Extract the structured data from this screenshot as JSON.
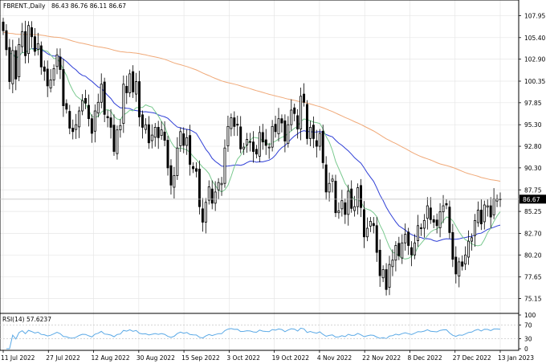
{
  "header": {
    "symbol": "FBRENT.,Daily",
    "ohlc": "86.43 86.76 86.11 86.67"
  },
  "rsi_header": {
    "label": "RSI(14) 57.6237"
  },
  "colors": {
    "background": "#ffffff",
    "grid": "#e6e6e6",
    "candle": "#000000",
    "ma_fast": "#7ac98f",
    "ma_mid": "#2f3fd6",
    "ma_slow": "#f0a978",
    "rsi_line": "#5aa9e6",
    "price_tag_bg": "#000000",
    "price_tag_text": "#ffffff"
  },
  "chart_data": {
    "type": "candlestick",
    "instrument": "FBRENT.",
    "timeframe": "Daily",
    "current_price": "86.67",
    "price_axis": {
      "ticks": [
        "107.95",
        "105.40",
        "102.90",
        "100.35",
        "97.85",
        "95.30",
        "92.80",
        "90.30",
        "87.75",
        "85.25",
        "82.70",
        "80.20",
        "77.65",
        "75.15"
      ],
      "range": [
        73.8,
        109.2
      ]
    },
    "x_labels": [
      "11 Jul 2022",
      "27 Jul 2022",
      "12 Aug 2022",
      "30 Aug 2022",
      "15 Sep 2022",
      "3 Oct 2022",
      "19 Oct 2022",
      "4 Nov 2022",
      "22 Nov 2022",
      "8 Dec 2022",
      "27 Dec 2022",
      "13 Jan 2023"
    ],
    "close": [
      106.2,
      104.0,
      100.3,
      103.9,
      100.6,
      104.6,
      106.1,
      103.3,
      106.8,
      105.5,
      103.8,
      104.7,
      102.0,
      101.5,
      99.8,
      100.5,
      101.8,
      103.4,
      101.7,
      97.5,
      97.1,
      94.9,
      94.5,
      95.3,
      96.9,
      98.1,
      97.8,
      96.0,
      94.3,
      96.9,
      97.9,
      100.0,
      96.5,
      96.1,
      95.0,
      92.2,
      94.7,
      95.2,
      100.0,
      99.0,
      101.2,
      99.1,
      100.3,
      96.2,
      95.0,
      95.3,
      93.2,
      94.1,
      95.0,
      93.8,
      94.7,
      93.5,
      90.3,
      88.3,
      89.4,
      92.6,
      94.5,
      92.9,
      93.8,
      90.7,
      90.2,
      89.9,
      85.8,
      84.0,
      86.3,
      88.1,
      86.2,
      87.5,
      88.6,
      88.5,
      92.6,
      95.1,
      96.1,
      95.1,
      95.3,
      92.5,
      92.7,
      93.6,
      93.3,
      92.2,
      91.9,
      94.4,
      93.3,
      92.9,
      92.7,
      95.1,
      94.5,
      96.0,
      95.5,
      93.4,
      95.3,
      97.0,
      96.6,
      94.8,
      98.6,
      97.9,
      93.7,
      95.0,
      93.7,
      92.8,
      94.3,
      90.9,
      87.5,
      88.5,
      89.0,
      85.1,
      85.3,
      86.5,
      84.9,
      87.6,
      85.6,
      85.8,
      88.0,
      85.7,
      82.3,
      83.3,
      84.1,
      83.6,
      80.5,
      77.8,
      78.5,
      76.2,
      79.1,
      79.6,
      81.3,
      80.1,
      81.6,
      82.6,
      81.3,
      80.2,
      81.6,
      83.6,
      83.3,
      84.2,
      85.9,
      84.3,
      84.0,
      83.6,
      85.2,
      85.9,
      86.0,
      82.8,
      79.7,
      78.0,
      79.4,
      78.9,
      80.2,
      81.8,
      82.2,
      84.2,
      85.4,
      83.8,
      86.0,
      85.9,
      84.6,
      86.7,
      86.7,
      86.67
    ],
    "rsi": {
      "period": 14,
      "last_value": 57.6237,
      "range": [
        0,
        100
      ],
      "ticks": [
        "100",
        "70",
        "30",
        "0"
      ]
    },
    "moving_averages": [
      "fast",
      "mid",
      "slow"
    ],
    "grid": true
  }
}
